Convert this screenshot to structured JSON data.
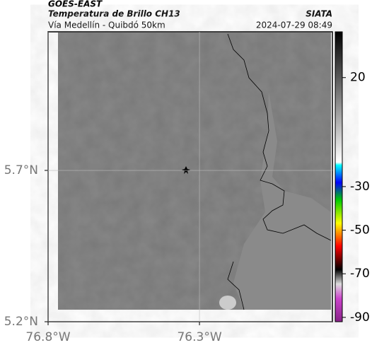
{
  "header": {
    "title": "GOES-EAST",
    "subtitle": "Temperatura de Brillo CH13",
    "source": "SIATA",
    "region": "Vía Medellín - Quibdó 50km",
    "datetime": "2024-07-29 08:49"
  },
  "map": {
    "latlim": [
      5.2,
      6.158
    ],
    "lonlim": [
      -76.8,
      -75.861
    ],
    "latticks": [
      {
        "value": 5.2,
        "label": "5.2°N"
      },
      {
        "value": 5.7,
        "label": "5.7°N"
      }
    ],
    "lonticks": [
      {
        "value": -76.8,
        "label": "76.8°W"
      },
      {
        "value": -76.3,
        "label": "76.3°W"
      }
    ]
  },
  "colorbar": {
    "lim": [
      -92,
      41
    ],
    "ticks": [
      20,
      -30,
      -50,
      -70,
      -90
    ]
  }
}
